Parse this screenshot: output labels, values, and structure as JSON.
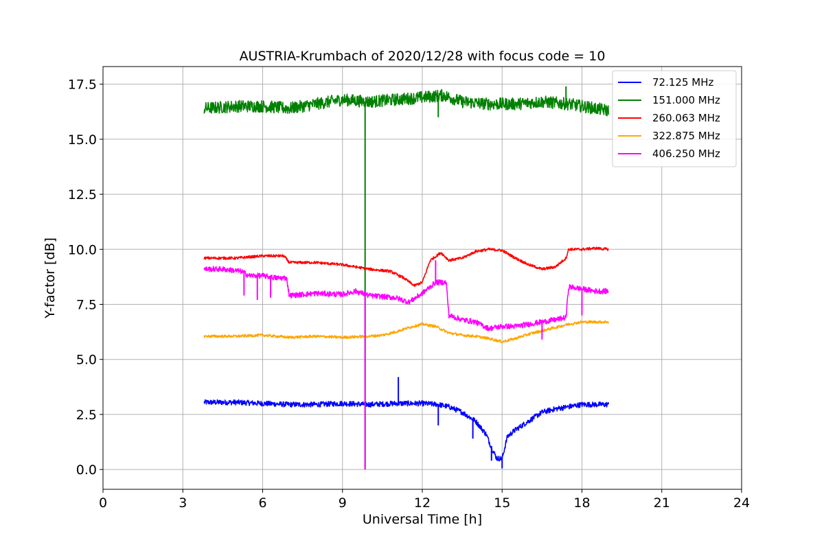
{
  "chart_data": {
    "type": "line",
    "title": "AUSTRIA-Krumbach of 2020/12/28 with focus code = 10",
    "xlabel": "Universal Time [h]",
    "ylabel": "Y-factor [dB]",
    "xlim": [
      0,
      24
    ],
    "ylim": [
      -0.9,
      18.3
    ],
    "x_ticks": [
      "0",
      "3",
      "6",
      "9",
      "12",
      "15",
      "18",
      "21",
      "24"
    ],
    "x_tick_values": [
      0,
      3,
      6,
      9,
      12,
      15,
      18,
      21,
      24
    ],
    "y_ticks": [
      "0.0",
      "2.5",
      "5.0",
      "7.5",
      "10.0",
      "12.5",
      "15.0",
      "17.5"
    ],
    "y_tick_values": [
      0,
      2.5,
      5,
      7.5,
      10,
      12.5,
      15,
      17.5
    ],
    "grid": true,
    "legend_position": "top-right",
    "series": [
      {
        "name": " 72.125 MHz",
        "color": "#0000ff",
        "noise": 0.12,
        "x": [
          3.8,
          5.0,
          6.0,
          7.0,
          8.0,
          9.0,
          10.0,
          11.0,
          12.0,
          12.6,
          13.0,
          13.5,
          14.0,
          14.4,
          14.6,
          14.8,
          15.0,
          15.2,
          15.5,
          16.0,
          16.5,
          17.0,
          17.5,
          18.0,
          18.5,
          19.0
        ],
        "y": [
          3.05,
          3.05,
          3.0,
          2.95,
          2.95,
          3.0,
          2.95,
          3.0,
          3.0,
          2.95,
          2.85,
          2.6,
          2.2,
          1.6,
          1.0,
          0.5,
          0.5,
          1.5,
          1.8,
          2.2,
          2.6,
          2.75,
          2.85,
          2.95,
          2.95,
          2.95
        ],
        "spikes": [
          [
            11.1,
            4.2
          ],
          [
            12.6,
            2.0
          ],
          [
            13.9,
            1.4
          ],
          [
            15.0,
            0.05
          ],
          [
            14.6,
            0.4
          ]
        ]
      },
      {
        "name": "151.000 MHz",
        "color": "#008000",
        "noise": 0.28,
        "x": [
          3.8,
          5.0,
          6.0,
          7.0,
          8.0,
          9.0,
          10.0,
          11.0,
          12.0,
          12.8,
          13.5,
          14.5,
          15.5,
          16.5,
          17.5,
          18.0,
          18.5,
          19.0
        ],
        "y": [
          16.4,
          16.5,
          16.5,
          16.4,
          16.6,
          16.8,
          16.7,
          16.8,
          16.9,
          17.0,
          16.7,
          16.6,
          16.6,
          16.7,
          16.6,
          16.5,
          16.4,
          16.3
        ],
        "spikes": [
          [
            9.85,
            0.0
          ],
          [
            12.6,
            16.0
          ],
          [
            17.4,
            17.4
          ]
        ]
      },
      {
        "name": "260.063 MHz",
        "color": "#ff0000",
        "noise": 0.06,
        "x": [
          3.8,
          5.0,
          6.0,
          6.8,
          7.0,
          8.0,
          9.0,
          10.0,
          10.8,
          11.3,
          11.7,
          12.0,
          12.3,
          12.7,
          13.0,
          13.5,
          14.0,
          14.5,
          15.0,
          15.5,
          16.0,
          16.5,
          17.0,
          17.4,
          17.5,
          18.0,
          18.5,
          19.0
        ],
        "y": [
          9.6,
          9.6,
          9.7,
          9.7,
          9.4,
          9.4,
          9.3,
          9.1,
          9.0,
          8.7,
          8.35,
          8.5,
          9.5,
          9.85,
          9.5,
          9.6,
          9.9,
          10.0,
          9.95,
          9.6,
          9.3,
          9.1,
          9.2,
          9.6,
          10.0,
          10.0,
          10.05,
          10.0
        ],
        "spikes": []
      },
      {
        "name": "322.875 MHz",
        "color": "#ffa500",
        "noise": 0.06,
        "x": [
          3.8,
          5.0,
          6.0,
          7.0,
          8.0,
          9.0,
          10.0,
          10.5,
          11.0,
          11.5,
          12.0,
          12.5,
          13.0,
          13.5,
          14.0,
          14.5,
          15.0,
          15.5,
          16.0,
          16.5,
          17.0,
          17.5,
          18.0,
          18.5,
          19.0
        ],
        "y": [
          6.05,
          6.05,
          6.1,
          6.0,
          6.05,
          6.0,
          6.05,
          6.1,
          6.25,
          6.45,
          6.6,
          6.5,
          6.2,
          6.1,
          6.05,
          5.95,
          5.8,
          5.95,
          6.15,
          6.3,
          6.45,
          6.6,
          6.7,
          6.7,
          6.7
        ],
        "spikes": []
      },
      {
        "name": "406.250 MHz",
        "color": "#ff00ff",
        "noise": 0.12,
        "x": [
          3.8,
          4.5,
          5.2,
          5.5,
          6.0,
          6.5,
          6.9,
          7.0,
          7.5,
          8.0,
          9.0,
          9.5,
          10.0,
          10.5,
          11.0,
          11.5,
          12.0,
          12.5,
          12.9,
          13.0,
          13.5,
          14.0,
          14.5,
          15.0,
          15.5,
          16.0,
          16.5,
          17.0,
          17.4,
          17.5,
          18.0,
          18.5,
          19.0
        ],
        "y": [
          9.1,
          9.1,
          9.0,
          8.8,
          8.8,
          8.7,
          8.7,
          7.9,
          7.95,
          8.0,
          7.95,
          8.1,
          7.9,
          7.85,
          7.8,
          7.6,
          8.0,
          8.5,
          8.5,
          7.0,
          6.8,
          6.7,
          6.4,
          6.5,
          6.5,
          6.6,
          6.7,
          6.8,
          6.9,
          8.3,
          8.2,
          8.1,
          8.1
        ],
        "spikes": [
          [
            5.3,
            7.9
          ],
          [
            5.8,
            7.7
          ],
          [
            6.3,
            7.8
          ],
          [
            12.5,
            9.5
          ],
          [
            16.5,
            5.9
          ],
          [
            18.0,
            7.0
          ],
          [
            9.85,
            0.0
          ]
        ]
      }
    ]
  }
}
